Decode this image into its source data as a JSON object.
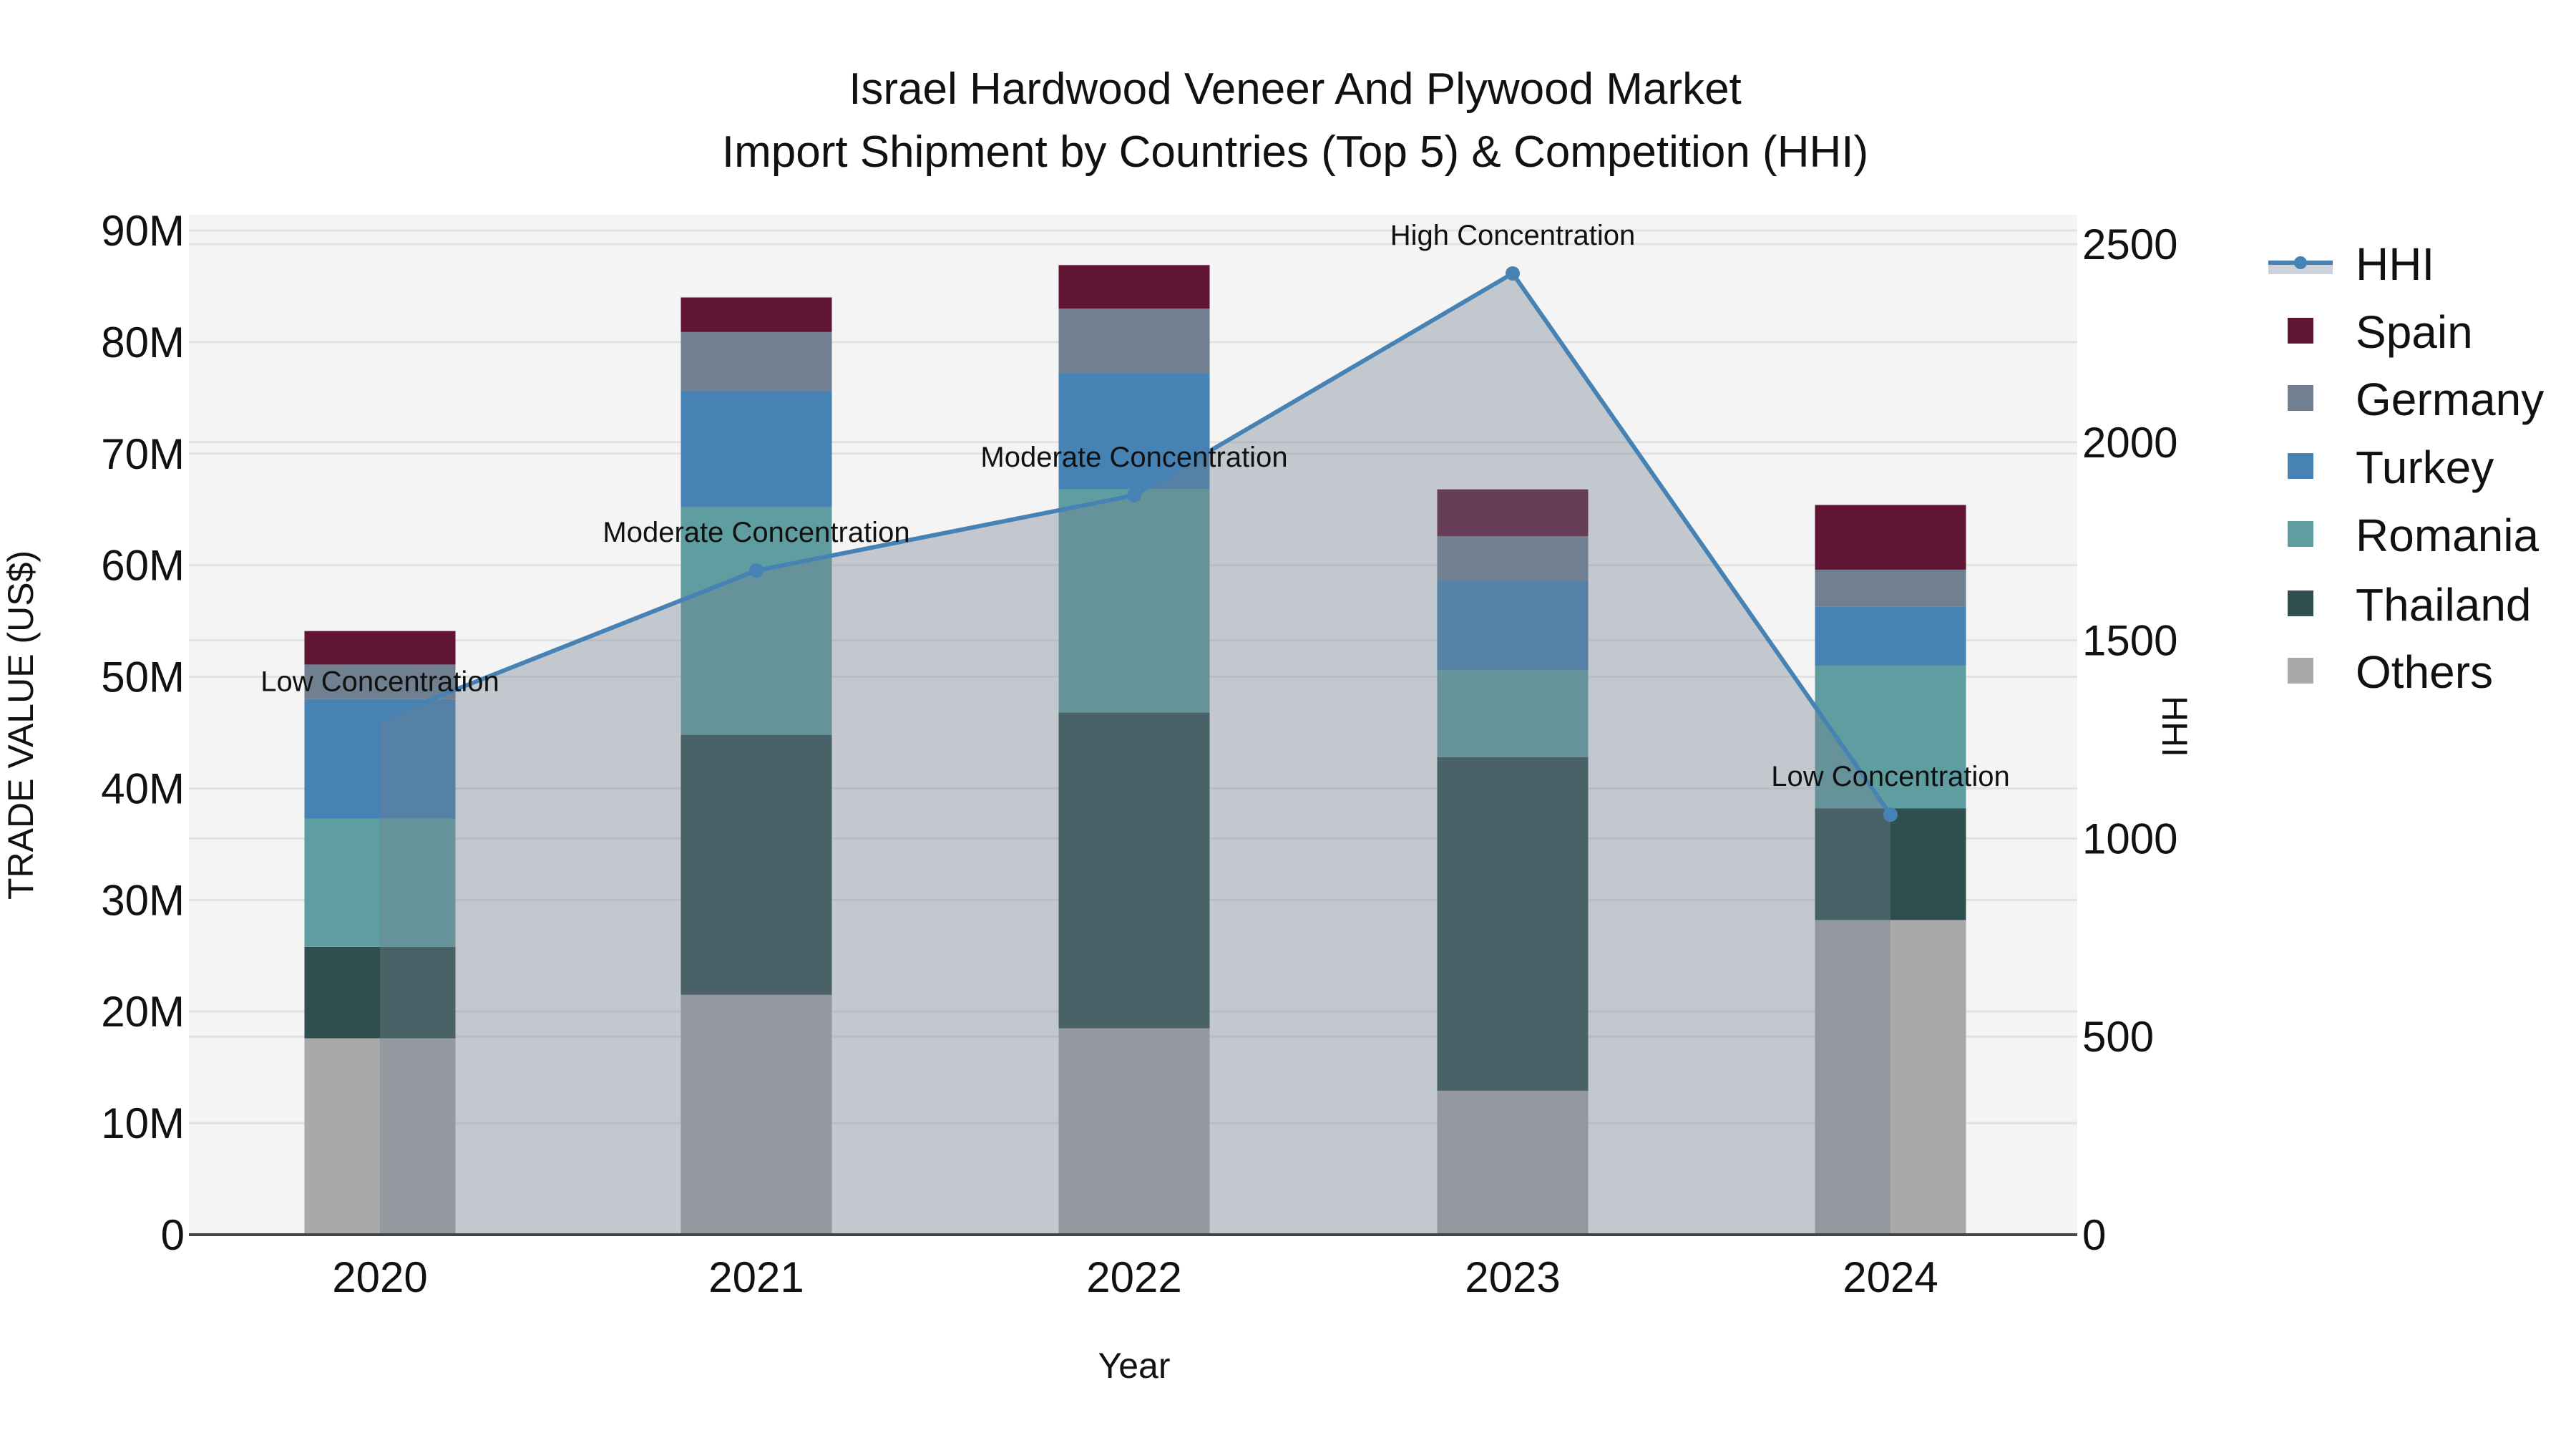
{
  "chart_data": {
    "type": "bar",
    "subtype": "stacked bar with secondary-axis line/area",
    "title": "Israel Hardwood Veneer And Plywood Market",
    "subtitle": "Import Shipment by Countries (Top 5) & Competition (HHI)",
    "xlabel": "Year",
    "ylabel": "TRADE VALUE (US$)",
    "y2label": "HHI",
    "categories": [
      "2020",
      "2021",
      "2022",
      "2023",
      "2024"
    ],
    "ylim": [
      0,
      90000000
    ],
    "y_ticks": [
      0,
      10000000,
      20000000,
      30000000,
      40000000,
      50000000,
      60000000,
      70000000,
      80000000,
      90000000
    ],
    "y_tick_labels": [
      "0",
      "10M",
      "20M",
      "30M",
      "40M",
      "50M",
      "60M",
      "70M",
      "80M",
      "90M"
    ],
    "y2lim": [
      0,
      2500
    ],
    "y2_ticks": [
      0,
      500,
      1000,
      1500,
      2000,
      2500
    ],
    "y2_tick_labels": [
      "0",
      "500",
      "1000",
      "1500",
      "2000",
      "2500"
    ],
    "grid": true,
    "legend_position": "right",
    "series": [
      {
        "name": "Others",
        "color": "#A9A9A9",
        "values": [
          17600000,
          21500000,
          18500000,
          12900000,
          28200000
        ]
      },
      {
        "name": "Thailand",
        "color": "#2F4F4F",
        "values": [
          8200000,
          23300000,
          28300000,
          29900000,
          10000000
        ]
      },
      {
        "name": "Romania",
        "color": "#5F9EA0",
        "values": [
          11500000,
          20400000,
          20000000,
          7800000,
          12800000
        ]
      },
      {
        "name": "Turkey",
        "color": "#4682B4",
        "values": [
          10700000,
          10400000,
          10400000,
          8000000,
          5300000
        ]
      },
      {
        "name": "Germany",
        "color": "#708090",
        "values": [
          3100000,
          5300000,
          5800000,
          4000000,
          3300000
        ]
      },
      {
        "name": "Spain",
        "color": "#611535",
        "values": [
          3000000,
          3100000,
          3900000,
          4200000,
          5800000
        ]
      }
    ],
    "totals": [
      54100000,
      84000000,
      86900000,
      66800000,
      65400000
    ],
    "line_series": {
      "name": "HHI",
      "axis": "y2",
      "color": "#4682B4",
      "fill": "rgba(112,128,144,0.38)",
      "values": [
        1300,
        1676,
        1866,
        2426,
        1060
      ],
      "annotations": [
        "Low Concentration",
        "Moderate Concentration",
        "Moderate Concentration",
        "High Concentration",
        "Low Concentration"
      ]
    },
    "legend": [
      "HHI",
      "Spain",
      "Germany",
      "Turkey",
      "Romania",
      "Thailand",
      "Others"
    ]
  }
}
